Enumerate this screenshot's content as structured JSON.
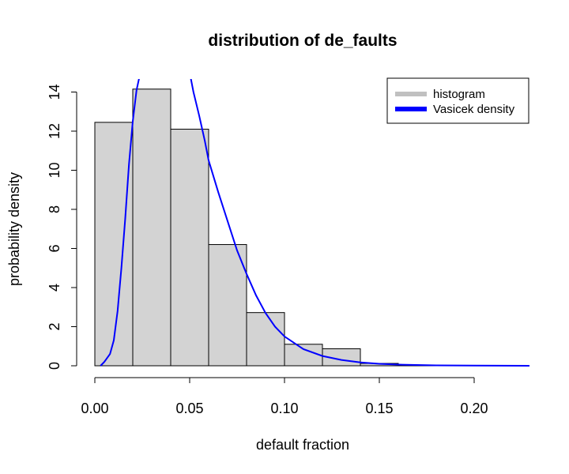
{
  "chart_data": {
    "type": "bar",
    "title": "distribution of de_faults",
    "xlabel": "default fraction",
    "ylabel": "probability density",
    "xlim": [
      0,
      0.23
    ],
    "ylim": [
      0,
      14.5
    ],
    "xticks": [
      0.0,
      0.05,
      0.1,
      0.15,
      0.2
    ],
    "xtick_labels": [
      "0.00",
      "0.05",
      "0.10",
      "0.15",
      "0.20"
    ],
    "yticks": [
      0,
      2,
      4,
      6,
      8,
      10,
      12,
      14
    ],
    "ytick_labels": [
      "0",
      "2",
      "4",
      "6",
      "8",
      "10",
      "12",
      "14"
    ],
    "grid": false,
    "legend_position": "top-right",
    "histogram": {
      "name": "histogram",
      "color": "#d3d3d3",
      "bin_edges": [
        0.0,
        0.02,
        0.04,
        0.06,
        0.08,
        0.1,
        0.12,
        0.14,
        0.16,
        0.18
      ],
      "densities": [
        12.45,
        14.15,
        12.1,
        6.2,
        2.72,
        1.1,
        0.87,
        0.12,
        0.03
      ]
    },
    "density_curve": {
      "name": "Vasicek density",
      "color": "#0000ff",
      "x": [
        0.003,
        0.005,
        0.008,
        0.01,
        0.012,
        0.014,
        0.016,
        0.018,
        0.02,
        0.022,
        0.024,
        0.05,
        0.052,
        0.055,
        0.058,
        0.06,
        0.065,
        0.07,
        0.075,
        0.08,
        0.085,
        0.09,
        0.095,
        0.1,
        0.11,
        0.12,
        0.13,
        0.14,
        0.15,
        0.16,
        0.18,
        0.2,
        0.23
      ],
      "y": [
        0.0,
        0.2,
        0.6,
        1.3,
        2.8,
        5.0,
        7.5,
        10.3,
        12.5,
        14.1,
        15.0,
        15.0,
        14.0,
        12.8,
        11.5,
        10.5,
        8.9,
        7.4,
        5.9,
        4.7,
        3.6,
        2.7,
        2.0,
        1.5,
        0.85,
        0.5,
        0.3,
        0.17,
        0.1,
        0.06,
        0.02,
        0.008,
        0.0
      ]
    }
  },
  "legend": {
    "items": [
      {
        "label": "histogram",
        "color": "#c0c0c0"
      },
      {
        "label": "Vasicek density",
        "color": "#0000ff"
      }
    ]
  }
}
